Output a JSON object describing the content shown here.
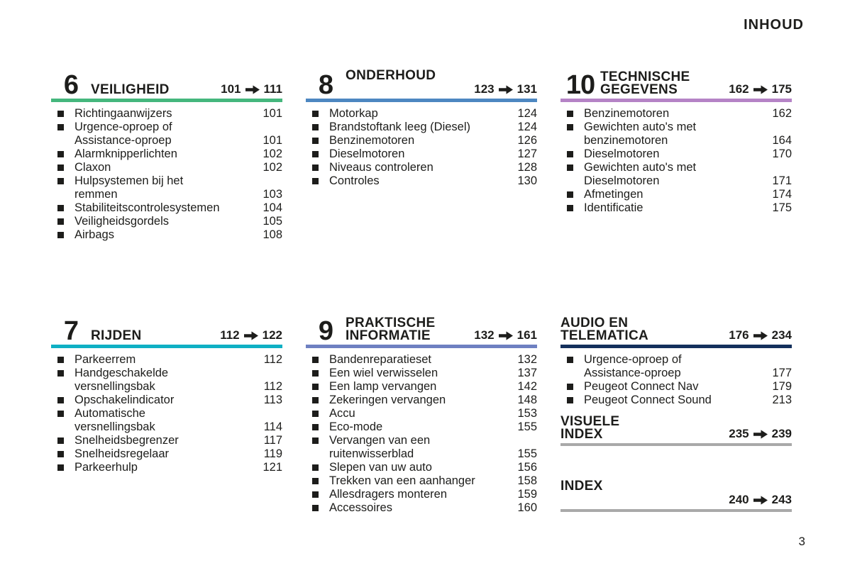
{
  "page": {
    "header": "INHOUD",
    "page_number": "3"
  },
  "icons": {
    "arrow_right": "arrow-right-icon",
    "bullet": "bullet-square-icon"
  },
  "sections": [
    {
      "id": "veiligheid",
      "number": "6",
      "title_lines": [
        "VEILIGHEID"
      ],
      "range_start": "101",
      "range_end": "111",
      "bar_color": "#45b77d",
      "column": 0,
      "row": 0,
      "range_below": false,
      "items": [
        {
          "label_lines": [
            "Richtingaanwijzers"
          ],
          "page": "101"
        },
        {
          "label_lines": [
            "Urgence-oproep of",
            "Assistance-oproep"
          ],
          "page": "101"
        },
        {
          "label_lines": [
            "Alarmknipperlichten"
          ],
          "page": "102"
        },
        {
          "label_lines": [
            "Claxon"
          ],
          "page": "102"
        },
        {
          "label_lines": [
            "Hulpsystemen bij het",
            "remmen"
          ],
          "page": "103"
        },
        {
          "label_lines": [
            "Stabiliteitscontrolesystemen"
          ],
          "page": "104"
        },
        {
          "label_lines": [
            "Veiligheidsgordels"
          ],
          "page": "105"
        },
        {
          "label_lines": [
            "Airbags"
          ],
          "page": "108"
        }
      ]
    },
    {
      "id": "rijden",
      "number": "7",
      "title_lines": [
        "RIJDEN"
      ],
      "range_start": "112",
      "range_end": "122",
      "bar_color": "#0fb0c4",
      "column": 0,
      "row": 1,
      "range_below": false,
      "items": [
        {
          "label_lines": [
            "Parkeerrem"
          ],
          "page": "112"
        },
        {
          "label_lines": [
            "Handgeschakelde",
            "versnellingsbak"
          ],
          "page": "112"
        },
        {
          "label_lines": [
            "Opschakelindicator"
          ],
          "page": "113"
        },
        {
          "label_lines": [
            "Automatische",
            "versnellingsbak"
          ],
          "page": "114"
        },
        {
          "label_lines": [
            "Snelheidsbegrenzer"
          ],
          "page": "117"
        },
        {
          "label_lines": [
            "Snelheidsregelaar"
          ],
          "page": "119"
        },
        {
          "label_lines": [
            "Parkeerhulp"
          ],
          "page": "121"
        }
      ]
    },
    {
      "id": "onderhoud",
      "number": "8",
      "title_lines": [
        "ONDERHOUD"
      ],
      "range_start": "123",
      "range_end": "131",
      "bar_color": "#4d87c1",
      "column": 1,
      "row": 0,
      "range_below": true,
      "items": [
        {
          "label_lines": [
            "Motorkap"
          ],
          "page": "124"
        },
        {
          "label_lines": [
            "Brandstoftank leeg (Diesel)"
          ],
          "page": "124"
        },
        {
          "label_lines": [
            "Benzinemotoren"
          ],
          "page": "126"
        },
        {
          "label_lines": [
            "Dieselmotoren"
          ],
          "page": "127"
        },
        {
          "label_lines": [
            "Niveaus controleren"
          ],
          "page": "128"
        },
        {
          "label_lines": [
            "Controles"
          ],
          "page": "130"
        }
      ]
    },
    {
      "id": "praktische-informatie",
      "number": "9",
      "title_lines": [
        "PRAKTISCHE",
        "INFORMATIE"
      ],
      "range_start": "132",
      "range_end": "161",
      "bar_color": "#6e80c1",
      "column": 1,
      "row": 1,
      "range_below": false,
      "items": [
        {
          "label_lines": [
            "Bandenreparatieset"
          ],
          "page": "132"
        },
        {
          "label_lines": [
            "Een wiel verwisselen"
          ],
          "page": "137"
        },
        {
          "label_lines": [
            "Een lamp vervangen"
          ],
          "page": "142"
        },
        {
          "label_lines": [
            "Zekeringen vervangen"
          ],
          "page": "148"
        },
        {
          "label_lines": [
            "Accu"
          ],
          "page": "153"
        },
        {
          "label_lines": [
            "Eco-mode"
          ],
          "page": "155"
        },
        {
          "label_lines": [
            "Vervangen van een",
            "ruitenwisserblad"
          ],
          "page": "155"
        },
        {
          "label_lines": [
            "Slepen van uw auto"
          ],
          "page": "156"
        },
        {
          "label_lines": [
            "Trekken van een aanhanger"
          ],
          "page": "158"
        },
        {
          "label_lines": [
            "Allesdragers monteren"
          ],
          "page": "159"
        },
        {
          "label_lines": [
            "Accessoires"
          ],
          "page": "160"
        }
      ]
    },
    {
      "id": "technische-gegevens",
      "number": "10",
      "title_lines": [
        "TECHNISCHE",
        "GEGEVENS"
      ],
      "range_start": "162",
      "range_end": "175",
      "bar_color": "#b583c6",
      "column": 2,
      "row": 0,
      "range_below": false,
      "items": [
        {
          "label_lines": [
            "Benzinemotoren"
          ],
          "page": "162"
        },
        {
          "label_lines": [
            "Gewichten auto's met",
            "benzinemotoren"
          ],
          "page": "164"
        },
        {
          "label_lines": [
            "Dieselmotoren"
          ],
          "page": "170"
        },
        {
          "label_lines": [
            "Gewichten auto's met",
            "Dieselmotoren"
          ],
          "page": "171"
        },
        {
          "label_lines": [
            "Afmetingen"
          ],
          "page": "174"
        },
        {
          "label_lines": [
            "Identificatie"
          ],
          "page": "175"
        }
      ]
    },
    {
      "id": "audio-en-telematica",
      "number": null,
      "title_lines": [
        "AUDIO EN",
        "TELEMATICA"
      ],
      "range_start": "176",
      "range_end": "234",
      "bar_color": "#14305c",
      "column": 2,
      "row": 1,
      "range_below": false,
      "items": [
        {
          "label_lines": [
            "Urgence-oproep of",
            "Assistance-oproep"
          ],
          "page": "177"
        },
        {
          "label_lines": [
            "Peugeot Connect Nav"
          ],
          "page": "179"
        },
        {
          "label_lines": [
            "Peugeot Connect Sound"
          ],
          "page": "213"
        }
      ]
    },
    {
      "id": "visuele-index",
      "number": null,
      "title_lines": [
        "VISUELE",
        "INDEX"
      ],
      "range_start": "235",
      "range_end": "239",
      "bar_color": "#a9a9a9",
      "column": 2,
      "row": 1,
      "range_below": false,
      "thin_bar": true,
      "items": []
    },
    {
      "id": "index",
      "number": null,
      "title_lines": [
        "INDEX"
      ],
      "range_start": "240",
      "range_end": "243",
      "bar_color": "#a9a9a9",
      "column": 2,
      "row": 1,
      "range_below": true,
      "thin_bar": true,
      "items": []
    }
  ]
}
